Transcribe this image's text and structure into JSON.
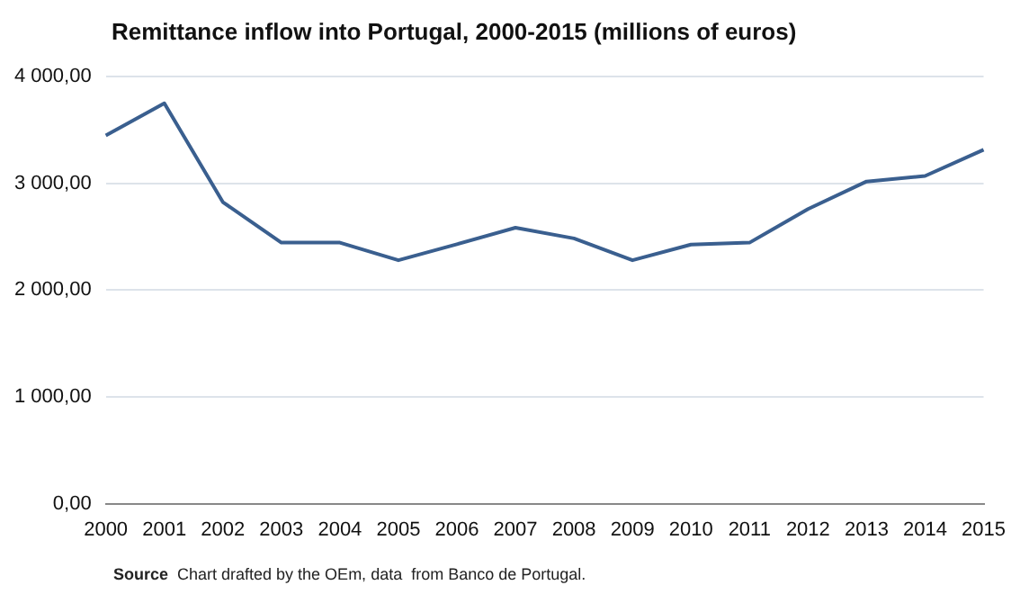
{
  "chart_data": {
    "type": "line",
    "title": "Remittance inflow into Portugal, 2000-2015  (millions of euros)",
    "categories": [
      "2000",
      "2001",
      "2002",
      "2003",
      "2004",
      "2005",
      "2006",
      "2007",
      "2008",
      "2009",
      "2010",
      "2011",
      "2012",
      "2013",
      "2014",
      "2015"
    ],
    "series": [
      {
        "color": "#3a5f8f",
        "values": [
          3450,
          3750,
          2825,
          2445,
          2445,
          2280,
          2430,
          2585,
          2485,
          2280,
          2427,
          2445,
          2760,
          3018,
          3070,
          3316
        ]
      }
    ],
    "ylim": [
      0,
      4000
    ],
    "yticks": [
      {
        "value": 0,
        "label": "0,00"
      },
      {
        "value": 1000,
        "label": "1 000,00"
      },
      {
        "value": 2000,
        "label": "2 000,00"
      },
      {
        "value": 3000,
        "label": "3 000,00"
      },
      {
        "value": 4000,
        "label": "4 000,00"
      }
    ],
    "grid": "y",
    "legend": false,
    "marker": "none",
    "line_style": "solid",
    "annotations": [
      "Source",
      "Chart drafted by the OEm, data  from Banco de Portugal."
    ]
  }
}
